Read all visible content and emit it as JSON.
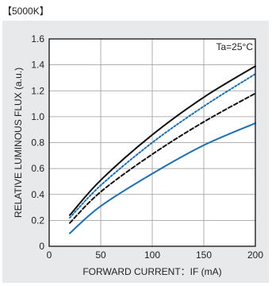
{
  "header": {
    "label": "【5000K】"
  },
  "chart_data": {
    "type": "line",
    "title": "",
    "annotation": "Ta=25°C",
    "xlabel": "FORWARD CURRENT：IF (mA)",
    "ylabel": "RELATIVE LUMINOUS FLUX (a.u.)",
    "xlim": [
      0,
      200
    ],
    "ylim": [
      0,
      1.6
    ],
    "xticks": [
      0,
      50,
      100,
      150,
      200
    ],
    "yticks": [
      0,
      0.2,
      0.4,
      0.6,
      0.8,
      1.0,
      1.2,
      1.4,
      1.6
    ],
    "xtick_labels": [
      "0",
      "50",
      "100",
      "150",
      "200"
    ],
    "ytick_labels": [
      "0",
      "0.2",
      "0.4",
      "0.6",
      "0.8",
      "1.0",
      "1.2",
      "1.4",
      "1.6"
    ],
    "grid": true,
    "x": [
      20,
      50,
      100,
      150,
      200
    ],
    "series": [
      {
        "values": [
          0.24,
          0.51,
          0.86,
          1.15,
          1.39
        ],
        "color": "#111111",
        "style": "solid"
      },
      {
        "values": [
          0.22,
          0.47,
          0.8,
          1.08,
          1.33
        ],
        "color": "#1f6fb2",
        "style": "dotted"
      },
      {
        "values": [
          0.18,
          0.42,
          0.71,
          0.96,
          1.18
        ],
        "color": "#111111",
        "style": "dashed"
      },
      {
        "values": [
          0.1,
          0.31,
          0.56,
          0.78,
          0.95
        ],
        "color": "#1f6fb2",
        "style": "solid"
      }
    ]
  }
}
